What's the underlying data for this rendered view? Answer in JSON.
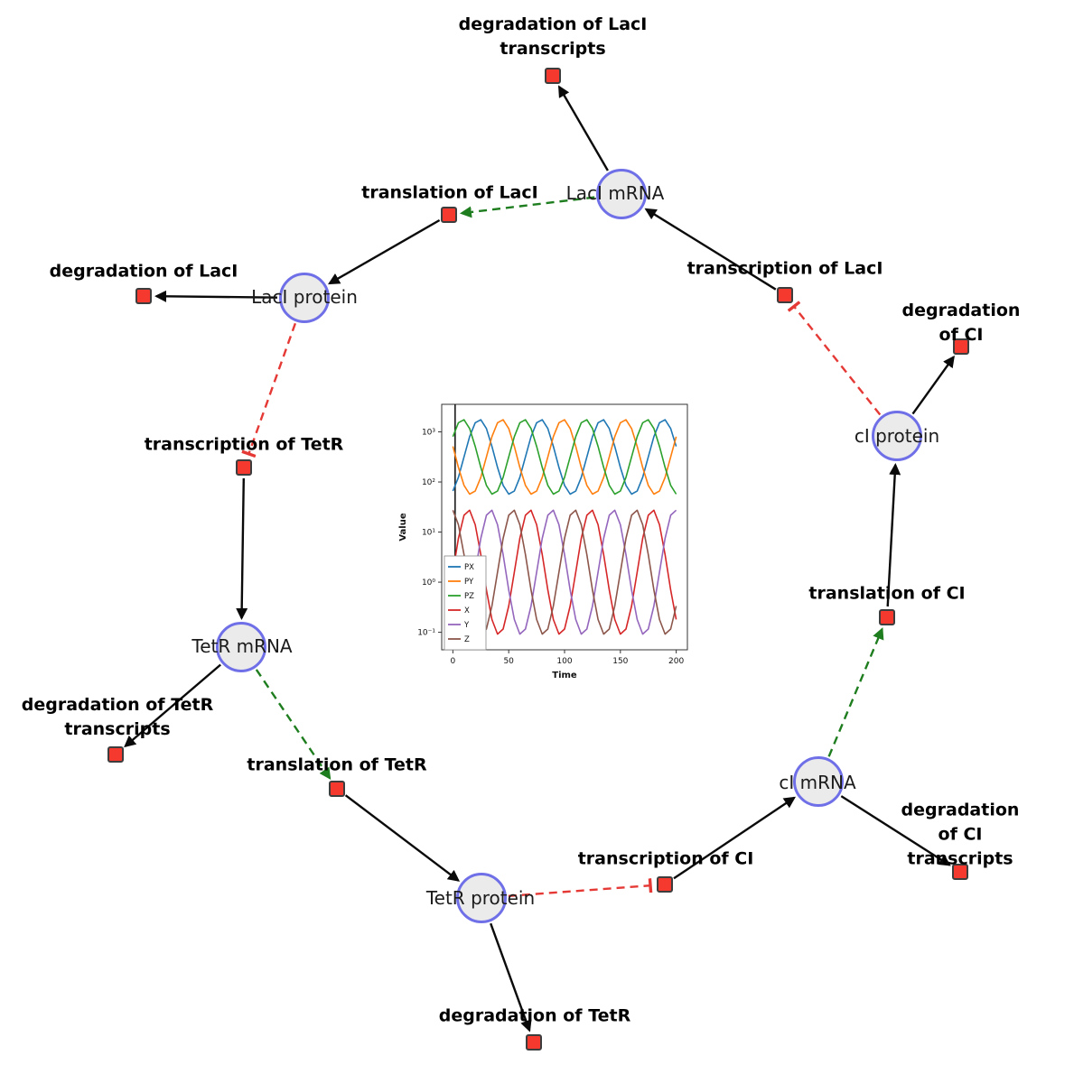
{
  "figure": {
    "background": "#ffffff"
  },
  "colors": {
    "species_fill": "#ebebeb",
    "species_border": "#6f6fe8",
    "reaction_fill": "#f5392e",
    "reaction_border": "#3d3d3d",
    "edge_black": "#0a0a0a",
    "edge_modifier_green": "#1e7d1e",
    "edge_inhibition_red": "#e53935"
  },
  "species": [
    {
      "id": "laci-mrna",
      "label": "LacI mRNA"
    },
    {
      "id": "laci-protein",
      "label": "LacI protein"
    },
    {
      "id": "tetr-mrna",
      "label": "TetR mRNA"
    },
    {
      "id": "tetr-protein",
      "label": "TetR protein"
    },
    {
      "id": "ci-mrna",
      "label": "cI mRNA"
    },
    {
      "id": "ci-protein",
      "label": "cI protein"
    }
  ],
  "reactions": [
    {
      "id": "deg-laci-transcripts",
      "label": "degradation of LacI\ntranscripts"
    },
    {
      "id": "translation-laci",
      "label": "translation of LacI"
    },
    {
      "id": "transcription-laci",
      "label": "transcription of LacI"
    },
    {
      "id": "deg-laci",
      "label": "degradation of LacI"
    },
    {
      "id": "deg-ci",
      "label": "degradation of CI"
    },
    {
      "id": "transcription-tetr",
      "label": "transcription of TetR"
    },
    {
      "id": "translation-ci",
      "label": "translation of CI"
    },
    {
      "id": "deg-tetr-transcripts",
      "label": "degradation of TetR\ntranscripts"
    },
    {
      "id": "translation-tetr",
      "label": "translation of TetR"
    },
    {
      "id": "transcription-ci",
      "label": "transcription of CI"
    },
    {
      "id": "deg-ci-transcripts",
      "label": "degradation of CI\ntranscripts"
    },
    {
      "id": "deg-tetr",
      "label": "degradation of TetR"
    }
  ],
  "chart_data": {
    "type": "line",
    "title": "",
    "xlabel": "Time",
    "ylabel": "Value",
    "yscale": "log",
    "xlim": [
      -10,
      210
    ],
    "ylim_log": [
      -1.35,
      3.55
    ],
    "x_ticks": [
      0,
      50,
      100,
      150,
      200
    ],
    "y_ticks_log": [
      -1,
      0,
      1,
      2,
      3
    ],
    "y_tick_labels": [
      "10⁻¹",
      "10⁰",
      "10¹",
      "10²",
      "10³"
    ],
    "legend_position": "lower-left",
    "grid": false,
    "startup_spike_x": 2,
    "x": [
      0,
      5,
      10,
      15,
      20,
      25,
      30,
      35,
      40,
      45,
      50,
      55,
      60,
      65,
      70,
      75,
      80,
      85,
      90,
      95,
      100,
      105,
      110,
      115,
      120,
      125,
      130,
      135,
      140,
      145,
      150,
      155,
      160,
      165,
      170,
      175,
      180,
      185,
      190,
      195,
      200
    ],
    "series": [
      {
        "name": "PX",
        "color": "#1f77b4",
        "values": [
          65.8,
          124,
          316,
          804,
          1521,
          1747,
          1166,
          514,
          195,
          85.7,
          57.3,
          65.8,
          124,
          316,
          804,
          1521,
          1747,
          1166,
          514,
          195,
          85.7,
          57.3,
          65.8,
          124,
          316,
          804,
          1521,
          1747,
          1166,
          514,
          195,
          85.7,
          57.3,
          65.8,
          124,
          316,
          804,
          1521,
          1747,
          1166,
          514
        ]
      },
      {
        "name": "PY",
        "color": "#ff7f0e",
        "values": [
          514,
          195,
          85.7,
          57.3,
          65.8,
          124,
          316,
          804,
          1521,
          1747,
          1166,
          514,
          195,
          85.7,
          57.3,
          65.8,
          124,
          316,
          804,
          1521,
          1747,
          1166,
          514,
          195,
          85.7,
          57.3,
          65.8,
          124,
          316,
          804,
          1521,
          1747,
          1166,
          514,
          195,
          85.7,
          57.3,
          65.8,
          124,
          316,
          804
        ]
      },
      {
        "name": "PZ",
        "color": "#2ca02c",
        "values": [
          804,
          1521,
          1747,
          1166,
          514,
          195,
          85.7,
          57.3,
          65.8,
          124,
          316,
          804,
          1521,
          1747,
          1166,
          514,
          195,
          85.7,
          57.3,
          65.8,
          124,
          316,
          804,
          1521,
          1747,
          1166,
          514,
          195,
          85.7,
          57.3,
          65.8,
          124,
          316,
          804,
          1521,
          1747,
          1166,
          514,
          195,
          85.7,
          57.3
        ]
      },
      {
        "name": "X",
        "color": "#d62728",
        "values": [
          1.58,
          7.51,
          21.7,
          27.4,
          14.0,
          3.56,
          0.7,
          0.18,
          0.092,
          0.116,
          0.334,
          1.58,
          7.51,
          21.7,
          27.4,
          14.0,
          3.56,
          0.7,
          0.18,
          0.092,
          0.116,
          0.334,
          1.58,
          7.51,
          21.7,
          27.4,
          14.0,
          3.56,
          0.7,
          0.18,
          0.092,
          0.116,
          0.334,
          1.58,
          7.51,
          21.7,
          27.4,
          14.0,
          3.56,
          0.7,
          0.18
        ]
      },
      {
        "name": "Y",
        "color": "#9467bd",
        "values": [
          0.18,
          0.092,
          0.116,
          0.334,
          1.58,
          7.51,
          21.7,
          27.4,
          14.0,
          3.56,
          0.7,
          0.18,
          0.092,
          0.116,
          0.334,
          1.58,
          7.51,
          21.7,
          27.4,
          14.0,
          3.56,
          0.7,
          0.18,
          0.092,
          0.116,
          0.334,
          1.58,
          7.51,
          21.7,
          27.4,
          14.0,
          3.56,
          0.7,
          0.18,
          0.092,
          0.116,
          0.334,
          1.58,
          7.51,
          21.7,
          27.4
        ]
      },
      {
        "name": "Z",
        "color": "#8c564b",
        "values": [
          27.4,
          14.0,
          3.56,
          0.7,
          0.18,
          0.092,
          0.116,
          0.334,
          1.58,
          7.51,
          21.7,
          27.4,
          14.0,
          3.56,
          0.7,
          0.18,
          0.092,
          0.116,
          0.334,
          1.58,
          7.51,
          21.7,
          27.4,
          14.0,
          3.56,
          0.7,
          0.18,
          0.092,
          0.116,
          0.334,
          1.58,
          7.51,
          21.7,
          27.4,
          14.0,
          3.56,
          0.7,
          0.18,
          0.092,
          0.116,
          0.334
        ]
      }
    ]
  }
}
